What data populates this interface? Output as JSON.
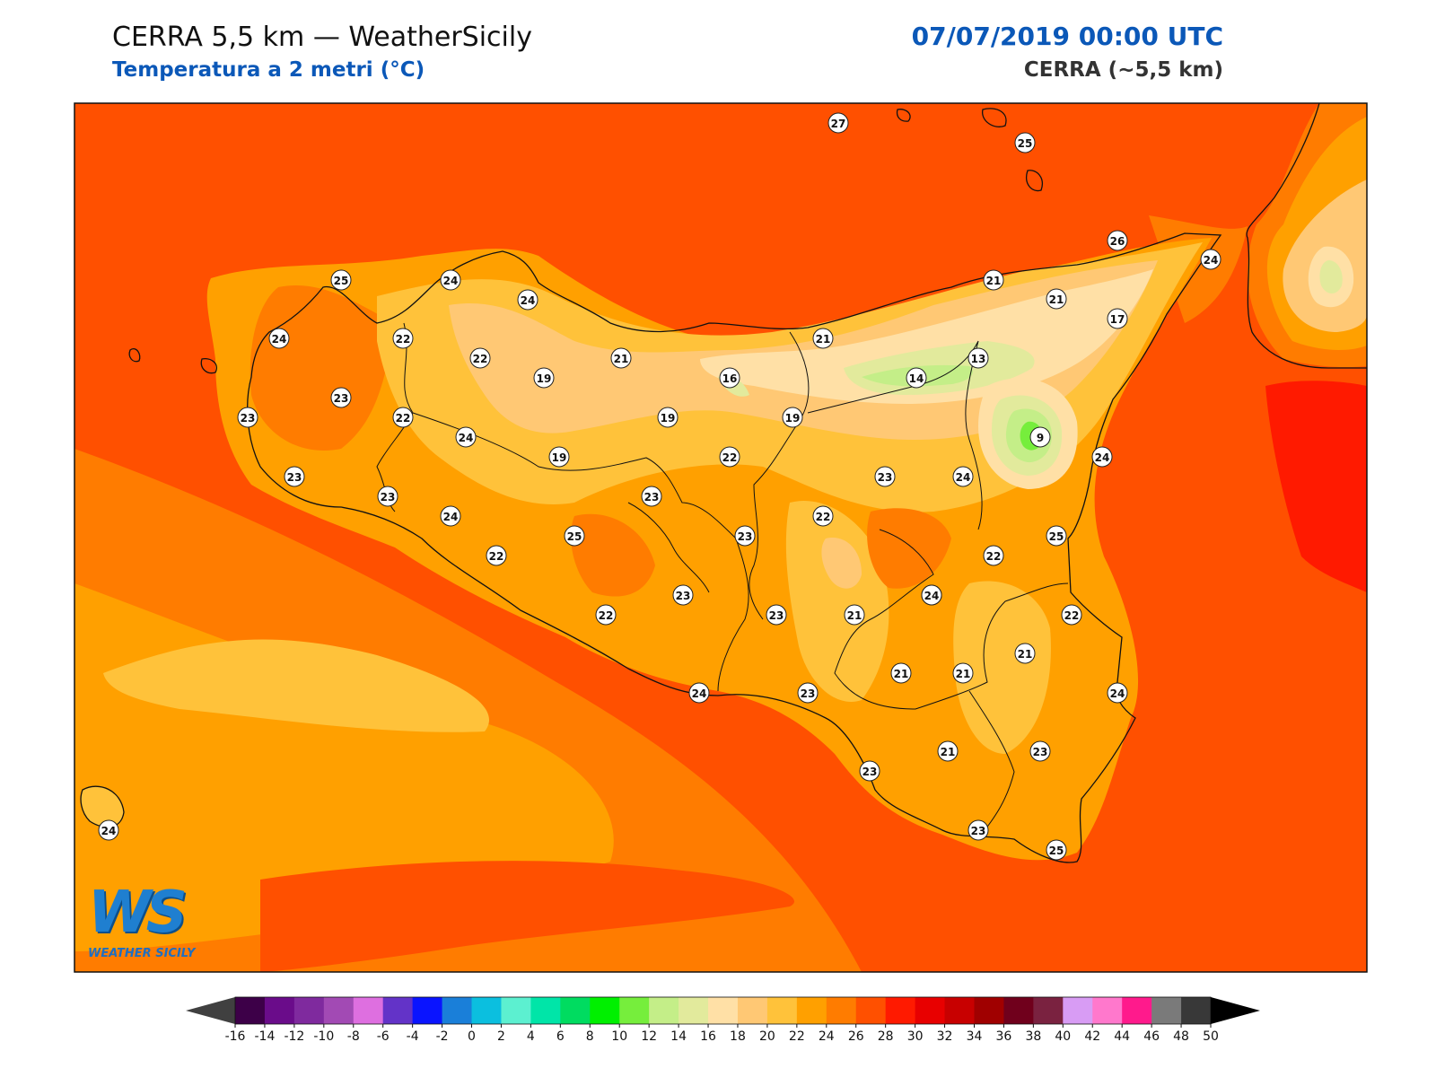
{
  "header": {
    "title_left": "CERRA 5,5 km — WeatherSicily",
    "subtitle_left": "Temperatura a 2 metri (°C)",
    "title_right": "07/07/2019 00:00 UTC",
    "subtitle_right": "CERRA (~5,5 km)"
  },
  "logo": {
    "letters": "WS",
    "text": "WEATHER SICILY"
  },
  "colorbar": {
    "ticks": [
      "-16",
      "-14",
      "-12",
      "-10",
      "-8",
      "-6",
      "-4",
      "-2",
      "0",
      "2",
      "4",
      "6",
      "8",
      "10",
      "12",
      "14",
      "16",
      "18",
      "20",
      "22",
      "24",
      "26",
      "28",
      "30",
      "32",
      "34",
      "36",
      "38",
      "40",
      "42",
      "44",
      "46",
      "48",
      "50"
    ],
    "colors": [
      "#3d0048",
      "#6a0c8a",
      "#7f2a9e",
      "#a24ab4",
      "#de6fe0",
      "#6333c8",
      "#0a14ff",
      "#1a7fd9",
      "#0bbfdf",
      "#5cf0d0",
      "#00e5a8",
      "#00dc60",
      "#00f000",
      "#76ee3c",
      "#c4ee88",
      "#e2ea9c",
      "#ffe0a6",
      "#ffc874",
      "#ffc23a",
      "#ffa000",
      "#ff7c00",
      "#ff5000",
      "#ff1a00",
      "#e80000",
      "#c80000",
      "#a00000",
      "#70001c",
      "#7a2240",
      "#d89cf4",
      "#ff78cc",
      "#ff1a8c",
      "#7a7a7a",
      "#383838"
    ],
    "under_color": "#404040",
    "over_color": "#000000"
  },
  "map": {
    "sea_color": "#ff5000",
    "stations": [
      {
        "v": "27"
      },
      {
        "v": "25"
      },
      {
        "v": "26"
      },
      {
        "v": "24"
      },
      {
        "v": "21"
      },
      {
        "v": "21"
      },
      {
        "v": "17"
      },
      {
        "v": "25"
      },
      {
        "v": "24"
      },
      {
        "v": "24"
      },
      {
        "v": "24"
      },
      {
        "v": "22"
      },
      {
        "v": "22"
      },
      {
        "v": "19"
      },
      {
        "v": "21"
      },
      {
        "v": "16"
      },
      {
        "v": "21"
      },
      {
        "v": "13"
      },
      {
        "v": "14"
      },
      {
        "v": "23"
      },
      {
        "v": "23"
      },
      {
        "v": "22"
      },
      {
        "v": "24"
      },
      {
        "v": "19"
      },
      {
        "v": "19"
      },
      {
        "v": "9"
      },
      {
        "v": "24"
      },
      {
        "v": "19"
      },
      {
        "v": "22"
      },
      {
        "v": "23"
      },
      {
        "v": "24"
      },
      {
        "v": "23"
      },
      {
        "v": "23"
      },
      {
        "v": "23"
      },
      {
        "v": "24"
      },
      {
        "v": "22"
      },
      {
        "v": "25"
      },
      {
        "v": "23"
      },
      {
        "v": "25"
      },
      {
        "v": "22"
      },
      {
        "v": "22"
      },
      {
        "v": "24"
      },
      {
        "v": "23"
      },
      {
        "v": "23"
      },
      {
        "v": "21"
      },
      {
        "v": "22"
      },
      {
        "v": "21"
      },
      {
        "v": "21"
      },
      {
        "v": "21"
      },
      {
        "v": "24"
      },
      {
        "v": "24"
      },
      {
        "v": "23"
      },
      {
        "v": "23"
      },
      {
        "v": "21"
      },
      {
        "v": "23"
      },
      {
        "v": "23"
      },
      {
        "v": "24"
      },
      {
        "v": "25"
      },
      {
        "v": "22"
      },
      {
        "v": "24"
      }
    ]
  }
}
